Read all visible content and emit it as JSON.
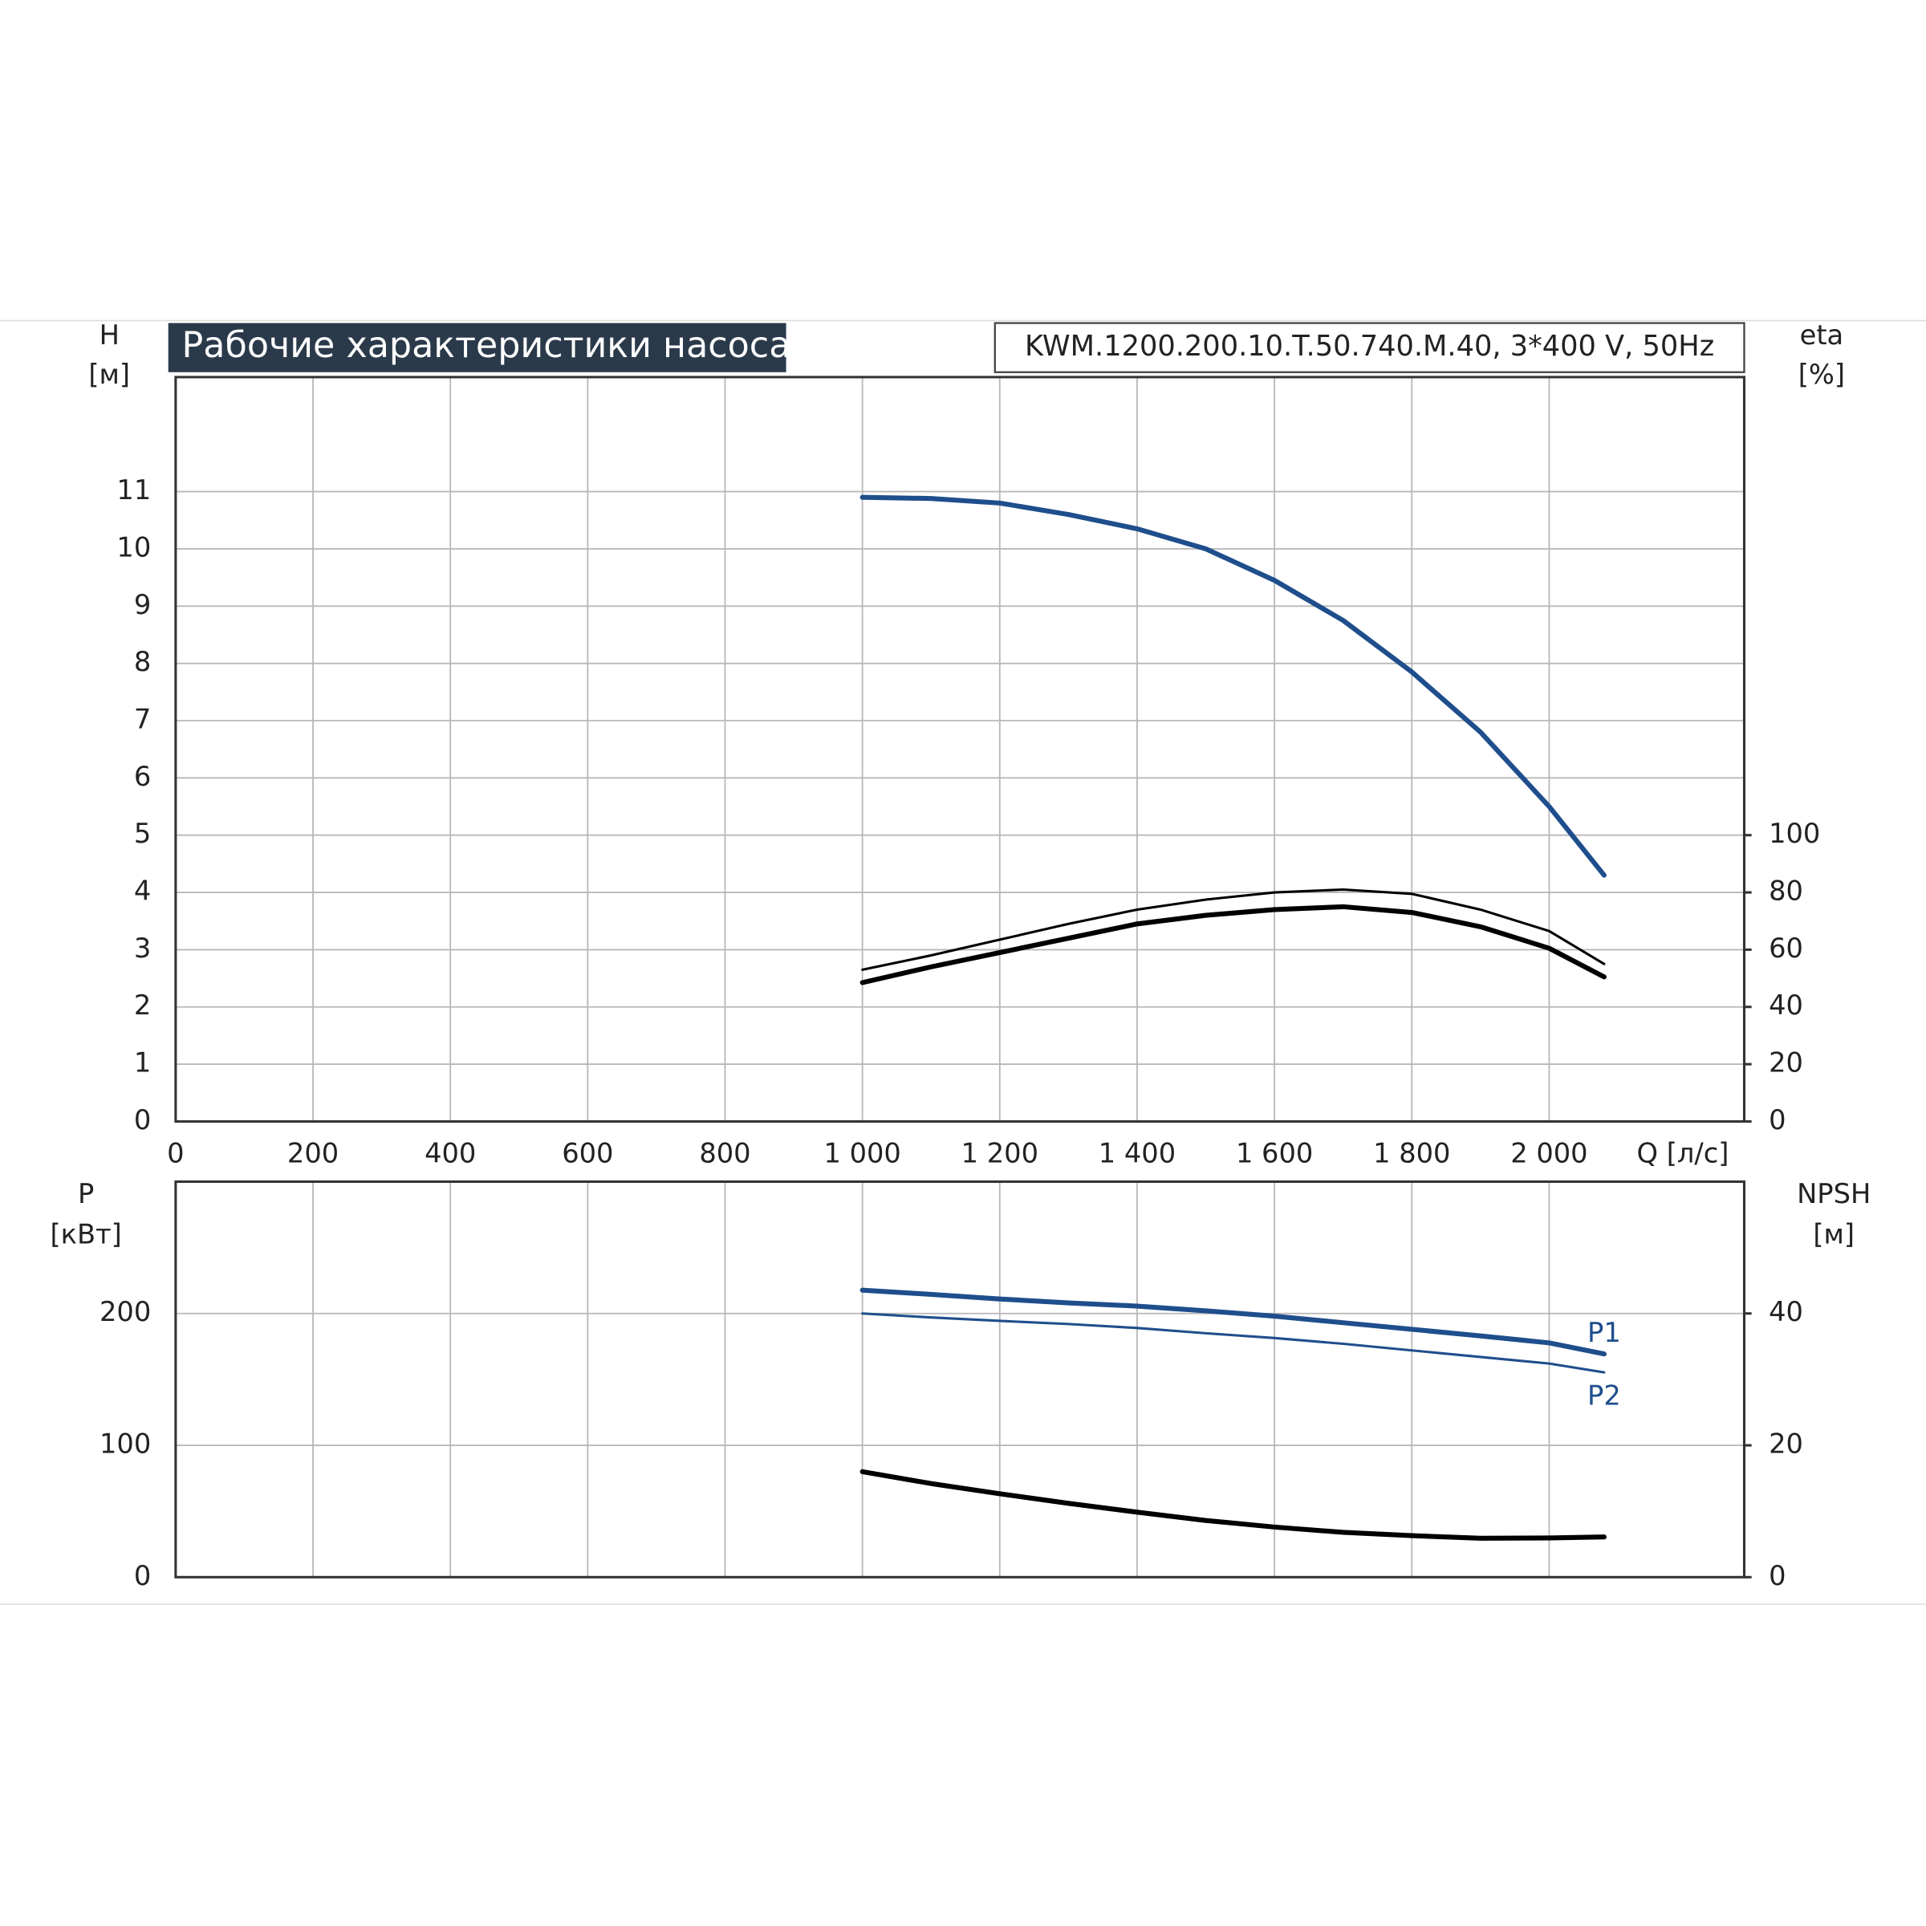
{
  "chart_data": [
    {
      "type": "line",
      "title": "Рабочие характеристики насоса",
      "subtitle": "KWM.1200.200.10.T.50.740.M.40, 3*400 V, 50Hz",
      "y_label": [
        "H",
        "[м]"
      ],
      "y2_label": [
        "eta",
        "[%]"
      ],
      "x_label": "Q [л/с]",
      "x": [
        1000,
        1100,
        1200,
        1300,
        1400,
        1500,
        1600,
        1700,
        1800,
        1900,
        2000,
        2080
      ],
      "xlim": [
        0,
        2284
      ],
      "xticks": [
        0,
        200,
        400,
        600,
        800,
        {
          "value": 1000,
          "label": "1 000"
        },
        {
          "value": 1200,
          "label": "1 200"
        },
        {
          "value": 1400,
          "label": "1 400"
        },
        {
          "value": 1600,
          "label": "1 600"
        },
        {
          "value": 1800,
          "label": "1 800"
        },
        {
          "value": 2000,
          "label": "2 000"
        }
      ],
      "ylim": [
        0,
        13
      ],
      "yticks": [
        0,
        1,
        2,
        3,
        4,
        5,
        6,
        7,
        8,
        9,
        10,
        11
      ],
      "y2lim": [
        0,
        260
      ],
      "y2ticks": [
        0,
        20,
        40,
        60,
        80,
        100
      ],
      "grid": true,
      "series": [
        {
          "color": "#1f4e8c",
          "width": 4,
          "values": [
            10.9,
            10.88,
            10.8,
            10.6,
            10.35,
            10.0,
            9.45,
            8.75,
            7.85,
            6.8,
            5.5,
            4.3
          ]
        },
        {
          "color": "#000000",
          "width": 2,
          "axis": "y2",
          "values": [
            53,
            58,
            63.5,
            69,
            74,
            77.5,
            80,
            81,
            79.5,
            74,
            66.5,
            55
          ]
        },
        {
          "color": "#000000",
          "width": 4,
          "axis": "y2",
          "values": [
            48.5,
            54,
            59,
            64,
            69,
            72,
            74,
            75,
            73,
            68,
            60.5,
            50.5
          ]
        }
      ]
    },
    {
      "type": "line",
      "y_label": [
        "P",
        "[кВт]"
      ],
      "y2_label": [
        "NPSH",
        "[м]"
      ],
      "x": [
        1000,
        1100,
        1200,
        1300,
        1400,
        1500,
        1600,
        1700,
        1800,
        1900,
        2000,
        2080
      ],
      "xlim": [
        0,
        2284
      ],
      "ylim": [
        0,
        300
      ],
      "yticks": [
        0,
        100,
        200
      ],
      "y2lim": [
        0,
        60
      ],
      "y2ticks": [
        0,
        20,
        40
      ],
      "grid": true,
      "series": [
        {
          "name": "P1",
          "color": "#1f4e8c",
          "width": 4,
          "values": [
            217.7,
            214.5,
            211,
            208,
            205.6,
            202,
            198,
            193,
            188,
            183,
            177.7,
            169.3
          ]
        },
        {
          "name": "P2",
          "color": "#1f4e8c",
          "width": 2,
          "values": [
            200,
            197,
            194.4,
            192,
            189,
            185,
            181.4,
            177,
            172,
            167,
            162,
            155.3
          ]
        },
        {
          "color": "#000000",
          "width": 4,
          "axis": "y2",
          "values": [
            16,
            14.2,
            12.65,
            11.2,
            9.86,
            8.6,
            7.6,
            6.8,
            6.3,
            5.9,
            5.95,
            6.1
          ]
        }
      ]
    }
  ]
}
